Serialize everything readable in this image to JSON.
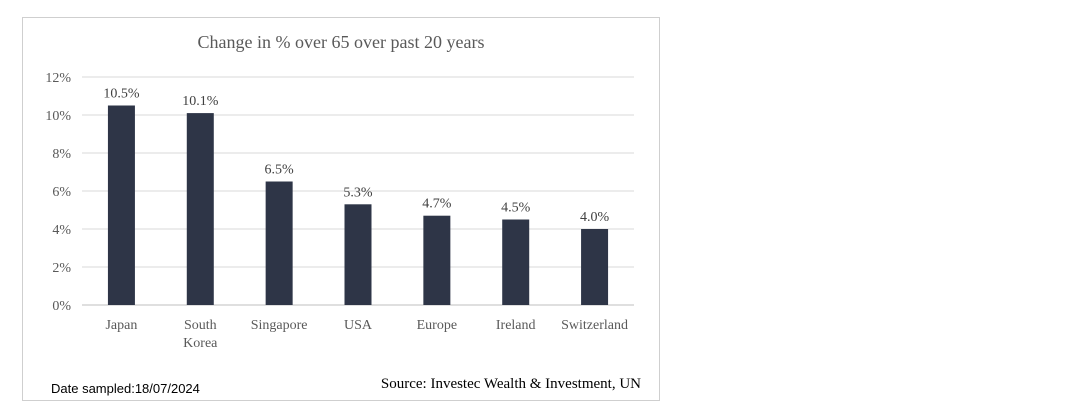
{
  "chart_data": {
    "type": "bar",
    "title": "Change in % over 65 over past 20 years",
    "categories": [
      "Japan",
      "South Korea",
      "Singapore",
      "USA",
      "Europe",
      "Ireland",
      "Switzerland"
    ],
    "category_lines": [
      [
        "Japan"
      ],
      [
        "South",
        "Korea"
      ],
      [
        "Singapore"
      ],
      [
        "USA"
      ],
      [
        "Europe"
      ],
      [
        "Ireland"
      ],
      [
        "Switzerland"
      ]
    ],
    "values": [
      10.5,
      10.1,
      6.5,
      5.3,
      4.7,
      4.5,
      4.0
    ],
    "data_labels": [
      "10.5%",
      "10.1%",
      "6.5%",
      "5.3%",
      "4.7%",
      "4.5%",
      "4.0%"
    ],
    "yticks": [
      "0%",
      "2%",
      "4%",
      "6%",
      "8%",
      "10%",
      "12%"
    ],
    "ylim": [
      0,
      12
    ],
    "grid": true,
    "bar_color": "#2e3547"
  },
  "footer": {
    "date": "Date sampled:18/07/2024",
    "source": "Source: Investec Wealth & Investment, UN"
  }
}
